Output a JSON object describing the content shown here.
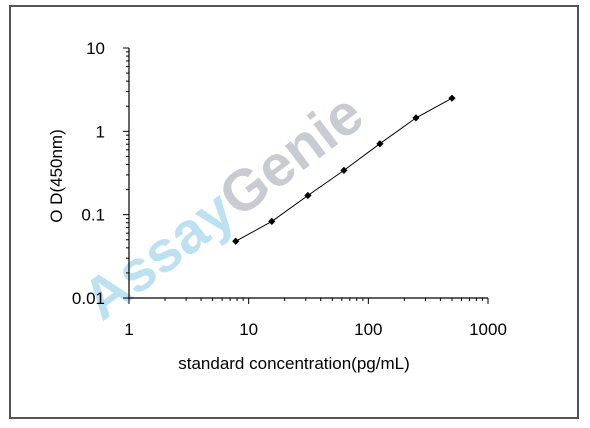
{
  "chart_data": {
    "type": "scatter",
    "xlabel": "standard concentration(pg/mL)",
    "ylabel": "O D(450nm)",
    "x_scale": "log",
    "y_scale": "log",
    "xlim": [
      1,
      1000
    ],
    "ylim": [
      0.01,
      10
    ],
    "x_ticks": [
      "1",
      "10",
      "100",
      "1000"
    ],
    "y_ticks": [
      "10",
      "1",
      "0.1",
      "0.01"
    ],
    "grid": false,
    "series": [
      {
        "x": [
          7.8,
          15.6,
          31.25,
          62.5,
          125,
          250,
          500
        ],
        "y": [
          0.048,
          0.083,
          0.17,
          0.34,
          0.71,
          1.45,
          2.5
        ],
        "marker": "diamond",
        "fit_line": true
      }
    ],
    "watermark": {
      "part1": "Assay",
      "part2": "Genie",
      "color1": "#a9d8ee",
      "color2": "#b4bcc3"
    },
    "colors": {
      "axis": "#000000",
      "marker": "#000000",
      "line": "#000000",
      "frame": "#555555"
    }
  }
}
